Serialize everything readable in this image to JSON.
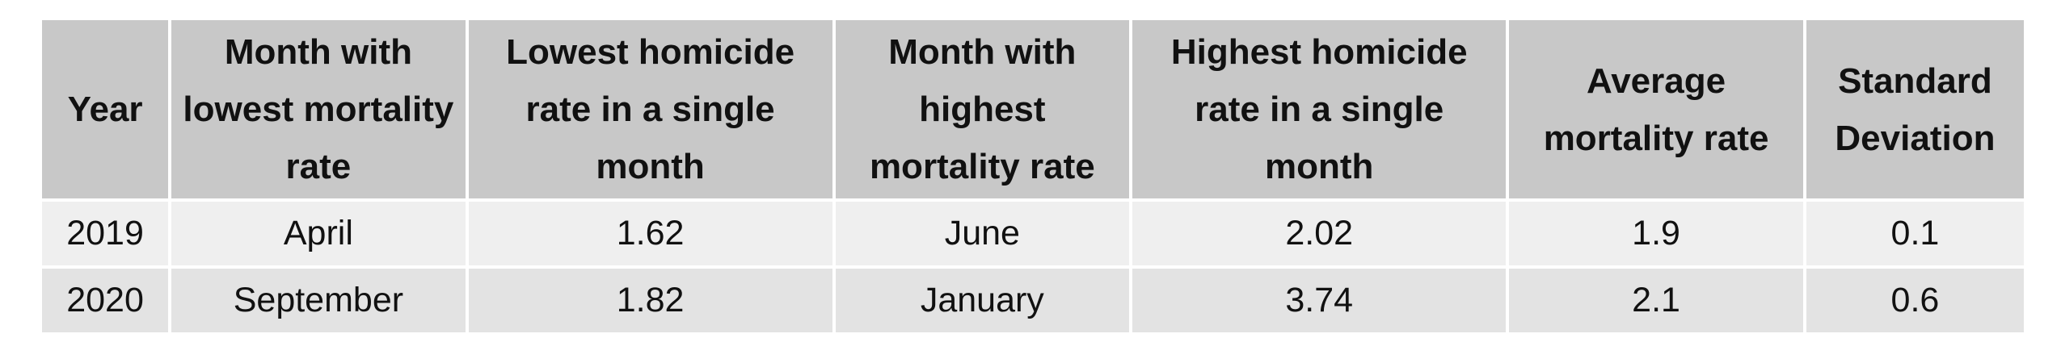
{
  "table": {
    "headers": [
      "Year",
      "Month with lowest mortality rate",
      "Lowest homicide rate in a single month",
      "Month with highest mortality rate",
      "Highest homicide rate in a single month",
      "Average mortality rate",
      "Standard Deviation"
    ],
    "rows": [
      [
        "2019",
        "April",
        "1.62",
        "June",
        "2.02",
        "1.9",
        "0.1"
      ],
      [
        "2020",
        "September",
        "1.82",
        "January",
        "3.74",
        "2.1",
        "0.6"
      ]
    ]
  }
}
